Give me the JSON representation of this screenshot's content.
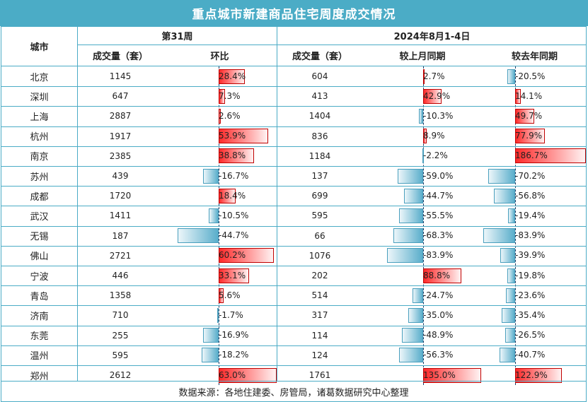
{
  "title": "重点城市新建商品住宅周度成交情况",
  "headers": {
    "city": "城市",
    "group1": "第31周",
    "group2": "2024年8月1-4日",
    "volume1": "成交量（套）",
    "wow": "环比",
    "volume2": "成交量（套）",
    "mom": "较上月同期",
    "yoy": "较去年同期"
  },
  "footer": "数据来源：各地住建委、房管局，诸葛数据研究中心整理",
  "colors": {
    "header": "#4bacc6",
    "positive": "#ff0000",
    "negative": "#5aaecb"
  },
  "chart_data": {
    "type": "table",
    "columns": [
      "城市",
      "第31周 成交量（套）",
      "第31周 环比",
      "2024年8月1-4日 成交量（套）",
      "较上月同期",
      "较去年同期"
    ],
    "rows": [
      {
        "city": "北京",
        "w31_volume": "1145",
        "w31_wow": 28.4,
        "w31_wow_label": "28.4%",
        "aug_volume": "604",
        "mom": 2.7,
        "mom_label": "2.7%",
        "yoy": -20.5,
        "yoy_label": "-20.5%"
      },
      {
        "city": "深圳",
        "w31_volume": "647",
        "w31_wow": 7.3,
        "w31_wow_label": "7.3%",
        "aug_volume": "413",
        "mom": 42.9,
        "mom_label": "42.9%",
        "yoy": 14.1,
        "yoy_label": "14.1%"
      },
      {
        "city": "上海",
        "w31_volume": "2887",
        "w31_wow": 2.6,
        "w31_wow_label": "2.6%",
        "aug_volume": "1404",
        "mom": -10.3,
        "mom_label": "-10.3%",
        "yoy": 49.7,
        "yoy_label": "49.7%"
      },
      {
        "city": "杭州",
        "w31_volume": "1917",
        "w31_wow": 53.9,
        "w31_wow_label": "53.9%",
        "aug_volume": "836",
        "mom": 8.9,
        "mom_label": "8.9%",
        "yoy": 77.9,
        "yoy_label": "77.9%"
      },
      {
        "city": "南京",
        "w31_volume": "2385",
        "w31_wow": 38.8,
        "w31_wow_label": "38.8%",
        "aug_volume": "1184",
        "mom": -2.2,
        "mom_label": "-2.2%",
        "yoy": 186.7,
        "yoy_label": "186.7%"
      },
      {
        "city": "苏州",
        "w31_volume": "439",
        "w31_wow": -16.7,
        "w31_wow_label": "-16.7%",
        "aug_volume": "137",
        "mom": -59.0,
        "mom_label": "-59.0%",
        "yoy": -70.2,
        "yoy_label": "-70.2%"
      },
      {
        "city": "成都",
        "w31_volume": "1720",
        "w31_wow": 18.4,
        "w31_wow_label": "18.4%",
        "aug_volume": "699",
        "mom": -44.7,
        "mom_label": "-44.7%",
        "yoy": -56.8,
        "yoy_label": "-56.8%"
      },
      {
        "city": "武汉",
        "w31_volume": "1411",
        "w31_wow": -10.5,
        "w31_wow_label": "-10.5%",
        "aug_volume": "595",
        "mom": -55.5,
        "mom_label": "-55.5%",
        "yoy": -19.4,
        "yoy_label": "-19.4%"
      },
      {
        "city": "无锡",
        "w31_volume": "187",
        "w31_wow": -44.7,
        "w31_wow_label": "-44.7%",
        "aug_volume": "66",
        "mom": -68.3,
        "mom_label": "-68.3%",
        "yoy": -83.9,
        "yoy_label": "-83.9%"
      },
      {
        "city": "佛山",
        "w31_volume": "2721",
        "w31_wow": 60.2,
        "w31_wow_label": "60.2%",
        "aug_volume": "1076",
        "mom": -83.9,
        "mom_label": "-83.9%",
        "yoy": -39.9,
        "yoy_label": "-39.9%"
      },
      {
        "city": "宁波",
        "w31_volume": "446",
        "w31_wow": 33.1,
        "w31_wow_label": "33.1%",
        "aug_volume": "202",
        "mom": 88.8,
        "mom_label": "88.8%",
        "yoy": -19.8,
        "yoy_label": "-19.8%"
      },
      {
        "city": "青岛",
        "w31_volume": "1358",
        "w31_wow": 5.6,
        "w31_wow_label": "5.6%",
        "aug_volume": "514",
        "mom": -24.7,
        "mom_label": "-24.7%",
        "yoy": -23.6,
        "yoy_label": "-23.6%"
      },
      {
        "city": "济南",
        "w31_volume": "710",
        "w31_wow": -1.7,
        "w31_wow_label": "-1.7%",
        "aug_volume": "317",
        "mom": -35.0,
        "mom_label": "-35.0%",
        "yoy": -35.4,
        "yoy_label": "-35.4%"
      },
      {
        "city": "东莞",
        "w31_volume": "255",
        "w31_wow": -16.9,
        "w31_wow_label": "-16.9%",
        "aug_volume": "114",
        "mom": -48.9,
        "mom_label": "-48.9%",
        "yoy": -26.5,
        "yoy_label": "-26.5%"
      },
      {
        "city": "温州",
        "w31_volume": "595",
        "w31_wow": -18.2,
        "w31_wow_label": "-18.2%",
        "aug_volume": "124",
        "mom": -56.3,
        "mom_label": "-56.3%",
        "yoy": -40.7,
        "yoy_label": "-40.7%"
      },
      {
        "city": "郑州",
        "w31_volume": "2612",
        "w31_wow": 63.0,
        "w31_wow_label": "63.0%",
        "aug_volume": "1761",
        "mom": 135.0,
        "mom_label": "135.0%",
        "yoy": 122.9,
        "yoy_label": "122.9%"
      }
    ]
  }
}
